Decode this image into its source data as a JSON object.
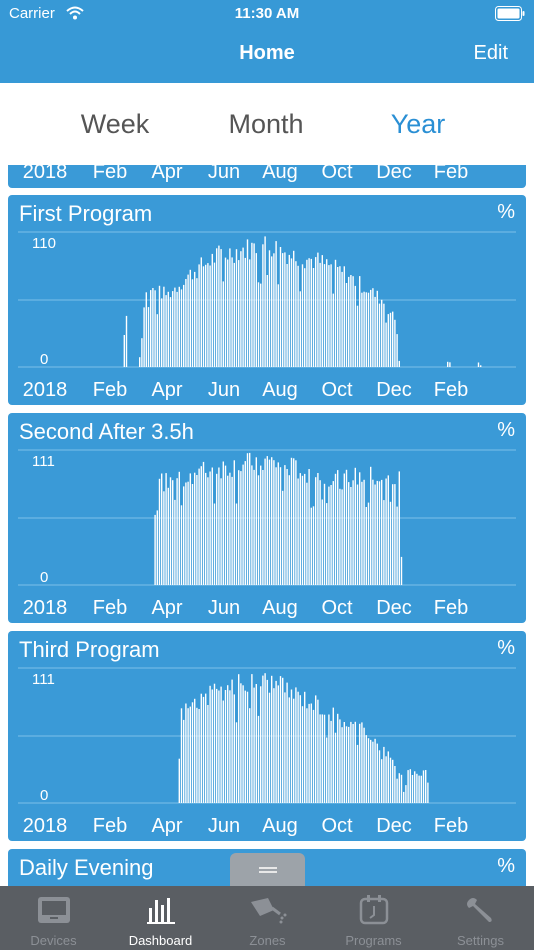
{
  "status_bar": {
    "carrier": "Carrier",
    "time": "11:30 AM"
  },
  "nav": {
    "title": "Home",
    "edit_label": "Edit"
  },
  "segments": [
    {
      "label": "Week",
      "active": false
    },
    {
      "label": "Month",
      "active": false
    },
    {
      "label": "Year",
      "active": true
    }
  ],
  "x_axis_labels": [
    "2018",
    "Feb",
    "Apr",
    "Jun",
    "Aug",
    "Oct",
    "Dec",
    "Feb"
  ],
  "cards": [
    {
      "title": "",
      "unit": "",
      "ymax_label": "",
      "ymin_label": ""
    },
    {
      "title": "First Program",
      "unit": "%",
      "ymax_label": "110",
      "ymin_label": "0"
    },
    {
      "title": "Second After 3.5h",
      "unit": "%",
      "ymax_label": "111",
      "ymin_label": "0"
    },
    {
      "title": "Third Program",
      "unit": "%",
      "ymax_label": "111",
      "ymin_label": "0"
    },
    {
      "title": "Daily Evening",
      "unit": "%",
      "ymax_label": "",
      "ymin_label": ""
    }
  ],
  "chart_data": [
    {
      "type": "bar",
      "title": "First Program",
      "unit": "%",
      "ylim": [
        0,
        110
      ],
      "x_tick_labels": [
        "2018",
        "Feb",
        "Apr",
        "Jun",
        "Aug",
        "Oct",
        "Dec",
        "Feb"
      ],
      "note": "",
      "envelope": [
        [
          0.09,
          0
        ],
        [
          0.21,
          0
        ],
        [
          0.215,
          70
        ],
        [
          0.22,
          0
        ],
        [
          0.24,
          0
        ],
        [
          0.245,
          15
        ],
        [
          0.255,
          70
        ],
        [
          0.3,
          65
        ],
        [
          0.35,
          85
        ],
        [
          0.4,
          100
        ],
        [
          0.45,
          105
        ],
        [
          0.5,
          110
        ],
        [
          0.55,
          100
        ],
        [
          0.6,
          95
        ],
        [
          0.65,
          85
        ],
        [
          0.7,
          70
        ],
        [
          0.73,
          60
        ],
        [
          0.76,
          40
        ],
        [
          0.765,
          0
        ],
        [
          0.86,
          0
        ],
        [
          0.862,
          8
        ],
        [
          0.87,
          0
        ],
        [
          0.92,
          0
        ],
        [
          0.922,
          5
        ],
        [
          0.93,
          0
        ]
      ]
    },
    {
      "type": "bar",
      "title": "Second After 3.5h",
      "unit": "%",
      "ylim": [
        0,
        111
      ],
      "x_tick_labels": [
        "2018",
        "Feb",
        "Apr",
        "Jun",
        "Aug",
        "Oct",
        "Dec",
        "Feb"
      ],
      "note": "",
      "envelope": [
        [
          0.09,
          0
        ],
        [
          0.27,
          0
        ],
        [
          0.275,
          90
        ],
        [
          0.3,
          95
        ],
        [
          0.35,
          100
        ],
        [
          0.4,
          105
        ],
        [
          0.45,
          108
        ],
        [
          0.5,
          111
        ],
        [
          0.55,
          105
        ],
        [
          0.6,
          100
        ],
        [
          0.65,
          95
        ],
        [
          0.7,
          98
        ],
        [
          0.74,
          95
        ],
        [
          0.765,
          95
        ],
        [
          0.77,
          0
        ],
        [
          0.93,
          0
        ]
      ]
    },
    {
      "type": "bar",
      "title": "Third Program",
      "unit": "%",
      "ylim": [
        0,
        111
      ],
      "x_tick_labels": [
        "2018",
        "Feb",
        "Apr",
        "Jun",
        "Aug",
        "Oct",
        "Dec",
        "Feb"
      ],
      "note": "",
      "envelope": [
        [
          0.09,
          0
        ],
        [
          0.32,
          0
        ],
        [
          0.325,
          80
        ],
        [
          0.35,
          90
        ],
        [
          0.4,
          100
        ],
        [
          0.45,
          108
        ],
        [
          0.5,
          111
        ],
        [
          0.55,
          100
        ],
        [
          0.6,
          90
        ],
        [
          0.65,
          75
        ],
        [
          0.7,
          65
        ],
        [
          0.74,
          45
        ],
        [
          0.77,
          25
        ],
        [
          0.775,
          0
        ],
        [
          0.78,
          30
        ],
        [
          0.8,
          25
        ],
        [
          0.82,
          30
        ],
        [
          0.825,
          0
        ],
        [
          0.93,
          0
        ]
      ]
    }
  ],
  "tabs": [
    {
      "label": "Devices",
      "icon": "devices-icon",
      "active": false
    },
    {
      "label": "Dashboard",
      "icon": "dashboard-icon",
      "active": true
    },
    {
      "label": "Zones",
      "icon": "zones-icon",
      "active": false
    },
    {
      "label": "Programs",
      "icon": "programs-icon",
      "active": false
    },
    {
      "label": "Settings",
      "icon": "settings-icon",
      "active": false
    }
  ],
  "colors": {
    "header": "#3799d6",
    "card": "#3a9ad7",
    "tab_bar": "#5a5e63",
    "active_segment": "#2a8fd4"
  }
}
